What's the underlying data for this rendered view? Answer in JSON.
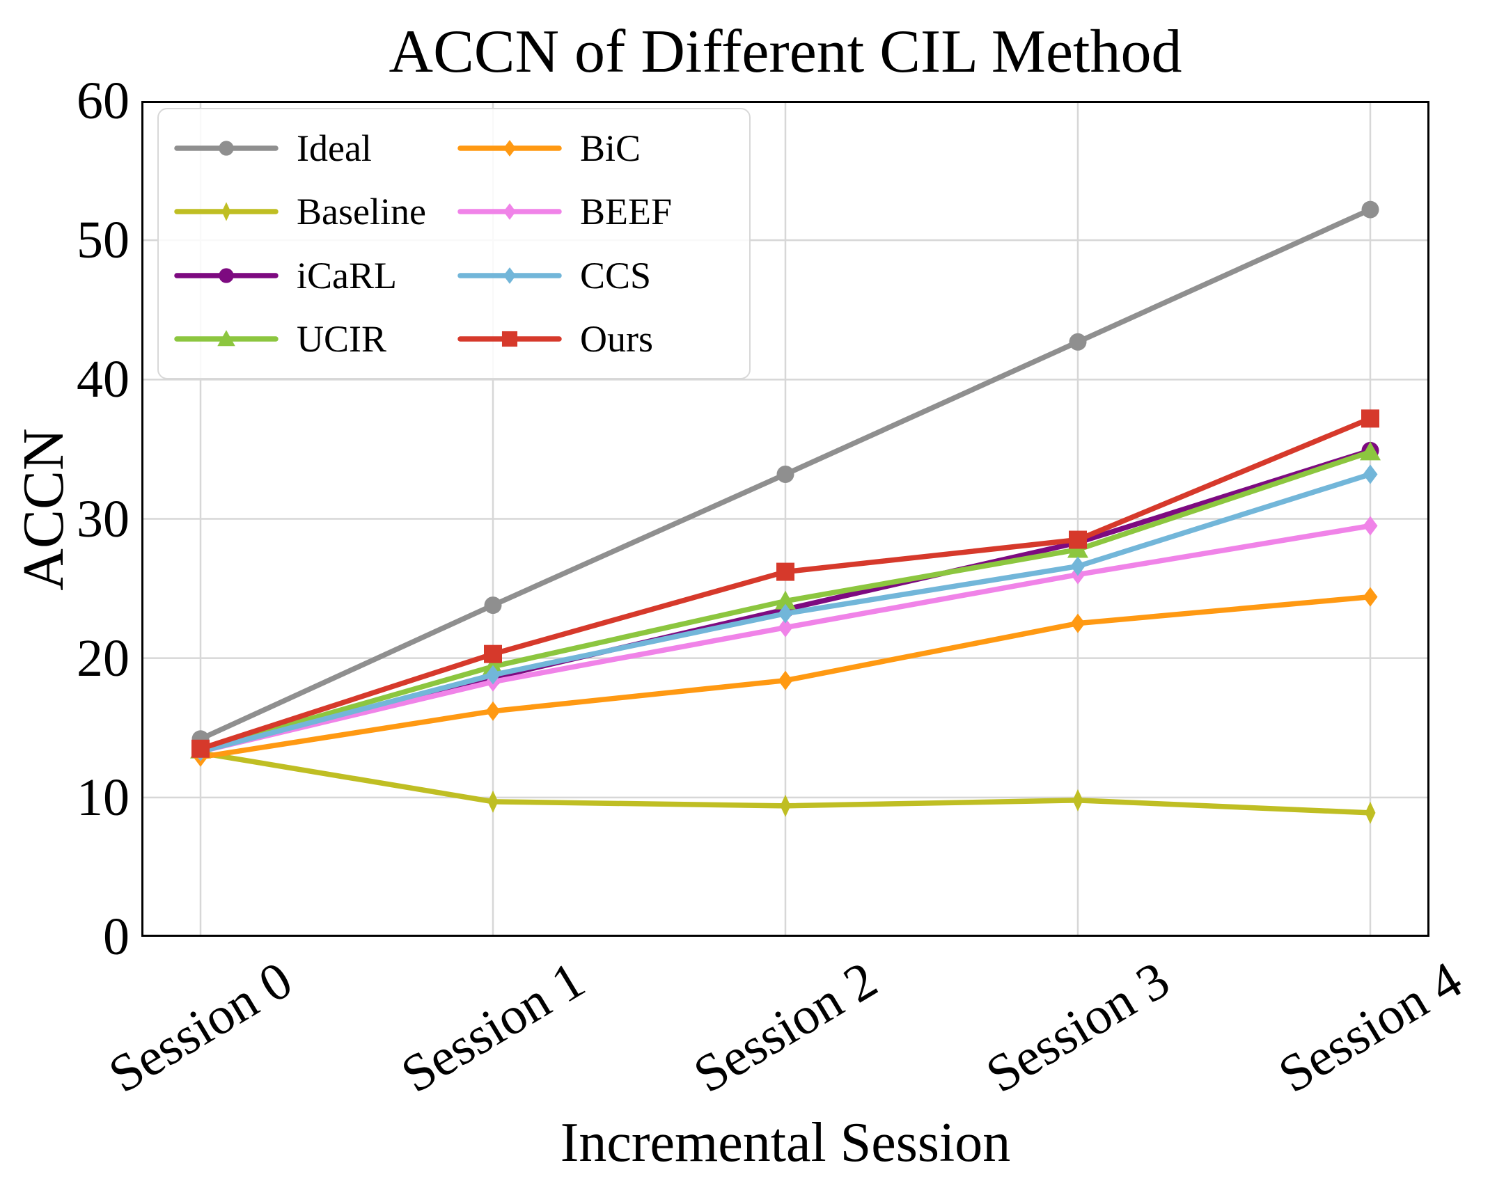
{
  "page": {
    "background": "#ffffff"
  },
  "chart_data": {
    "type": "line",
    "title": "ACCN of Different CIL Method",
    "xlabel": "Incremental Session",
    "ylabel": "ACCN",
    "categories": [
      "Session 0",
      "Session 1",
      "Session 2",
      "Session 3",
      "Session 4"
    ],
    "ylim": [
      0,
      60
    ],
    "yticks": [
      0,
      10,
      20,
      30,
      40,
      50,
      60
    ],
    "grid": true,
    "grid_color": "#d7d7d7",
    "legend_position": "upper-left",
    "series": [
      {
        "name": "Ideal",
        "color": "#8f8f8f",
        "marker": "circle",
        "values": [
          14.2,
          23.8,
          33.2,
          42.7,
          52.2
        ]
      },
      {
        "name": "Baseline",
        "color": "#bfbe23",
        "marker": "thin-diamond",
        "values": [
          13.2,
          9.7,
          9.4,
          9.8,
          8.9
        ]
      },
      {
        "name": "iCaRL",
        "color": "#7d0a80",
        "marker": "circle",
        "values": [
          13.4,
          18.6,
          23.5,
          28.3,
          34.9
        ]
      },
      {
        "name": "UCIR",
        "color": "#8cc63f",
        "marker": "triangle",
        "values": [
          13.4,
          19.4,
          24.1,
          27.8,
          34.8
        ]
      },
      {
        "name": "BiC",
        "color": "#ff9912",
        "marker": "diamond",
        "values": [
          12.9,
          16.2,
          18.4,
          22.5,
          24.4
        ]
      },
      {
        "name": "BEEF",
        "color": "#f083e8",
        "marker": "diamond",
        "values": [
          13.3,
          18.3,
          22.2,
          26.0,
          29.5
        ]
      },
      {
        "name": "CCS",
        "color": "#72b6d9",
        "marker": "diamond",
        "values": [
          13.3,
          18.8,
          23.2,
          26.6,
          33.2
        ]
      },
      {
        "name": "Ours",
        "color": "#d6392b",
        "marker": "square",
        "values": [
          13.5,
          20.3,
          26.2,
          28.5,
          37.2
        ]
      }
    ]
  }
}
